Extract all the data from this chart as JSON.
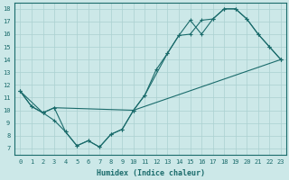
{
  "xlabel": "Humidex (Indice chaleur)",
  "bg_color": "#cce8e8",
  "grid_color": "#aad0d0",
  "line_color": "#1a6b6b",
  "xlim": [
    -0.5,
    23.5
  ],
  "ylim": [
    6.5,
    18.5
  ],
  "xticks": [
    0,
    1,
    2,
    3,
    4,
    5,
    6,
    7,
    8,
    9,
    10,
    11,
    12,
    13,
    14,
    15,
    16,
    17,
    18,
    19,
    20,
    21,
    22,
    23
  ],
  "yticks": [
    7,
    8,
    9,
    10,
    11,
    12,
    13,
    14,
    15,
    16,
    17,
    18
  ],
  "line1_x": [
    0,
    1,
    2,
    3,
    10,
    11,
    13,
    14,
    15,
    16,
    17,
    18,
    19,
    20,
    21,
    22,
    23
  ],
  "line1_y": [
    11.5,
    10.3,
    9.8,
    10.2,
    10.0,
    11.2,
    14.5,
    15.9,
    17.1,
    16.0,
    17.2,
    18.0,
    18.0,
    17.2,
    16.0,
    15.0,
    14.0
  ],
  "line2_x": [
    0,
    1,
    2,
    3,
    4,
    5,
    6,
    7,
    8,
    9,
    10,
    11,
    12,
    13,
    14,
    15,
    16,
    17,
    18,
    19,
    20,
    21,
    22,
    23
  ],
  "line2_y": [
    11.5,
    10.3,
    9.8,
    10.2,
    8.3,
    7.2,
    7.6,
    7.1,
    8.1,
    8.5,
    10.0,
    11.2,
    13.2,
    14.5,
    15.9,
    16.0,
    17.1,
    17.2,
    18.0,
    18.0,
    17.2,
    16.0,
    15.0,
    14.0
  ],
  "line3_x": [
    0,
    2,
    3,
    4,
    5,
    6,
    7,
    8,
    9,
    10,
    23
  ],
  "line3_y": [
    11.5,
    9.8,
    9.2,
    8.3,
    7.2,
    7.6,
    7.1,
    8.1,
    8.5,
    10.0,
    14.0
  ]
}
